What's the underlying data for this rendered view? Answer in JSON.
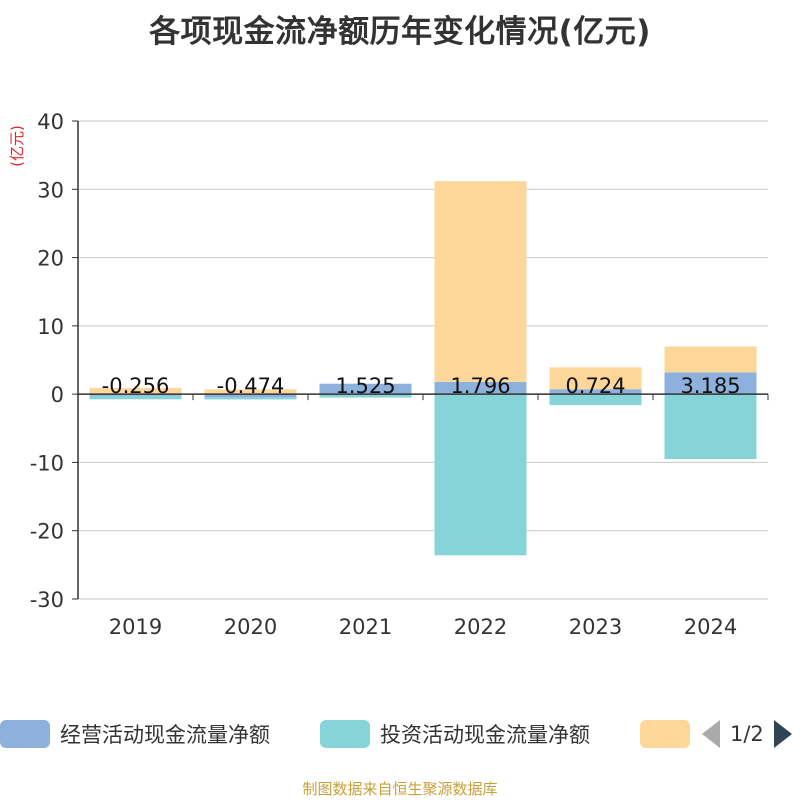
{
  "title": "各项现金流净额历年变化情况(亿元)",
  "source": "制图数据来自恒生聚源数据库",
  "chart_data": {
    "type": "bar",
    "stacked": true,
    "title": "各项现金流净额历年变化情况(亿元)",
    "ylabel": "(亿元)",
    "ylim": [
      -30,
      40
    ],
    "yticks": [
      -30,
      -20,
      -10,
      0,
      10,
      20,
      30,
      40
    ],
    "grid": true,
    "categories": [
      "2019",
      "2020",
      "2021",
      "2022",
      "2023",
      "2024"
    ],
    "series": [
      {
        "name": "经营活动现金流量净额",
        "color": "#8eb0dc",
        "values": [
          -0.256,
          -0.474,
          1.525,
          1.796,
          0.724,
          3.185
        ],
        "labels": [
          "-0.256",
          "-0.474",
          "1.525",
          "1.796",
          "0.724",
          "3.185"
        ]
      },
      {
        "name": "投资活动现金流量净额",
        "color": "#86d4d8",
        "values": [
          -0.5,
          -0.3,
          -0.5,
          -23.6,
          -1.6,
          -9.5
        ]
      },
      {
        "name": "",
        "color": "#fdd79a",
        "values": [
          0.9,
          0.7,
          0.0,
          29.4,
          3.2,
          3.8
        ]
      }
    ],
    "legend": {
      "position": "bottom",
      "page": "1/2"
    }
  }
}
